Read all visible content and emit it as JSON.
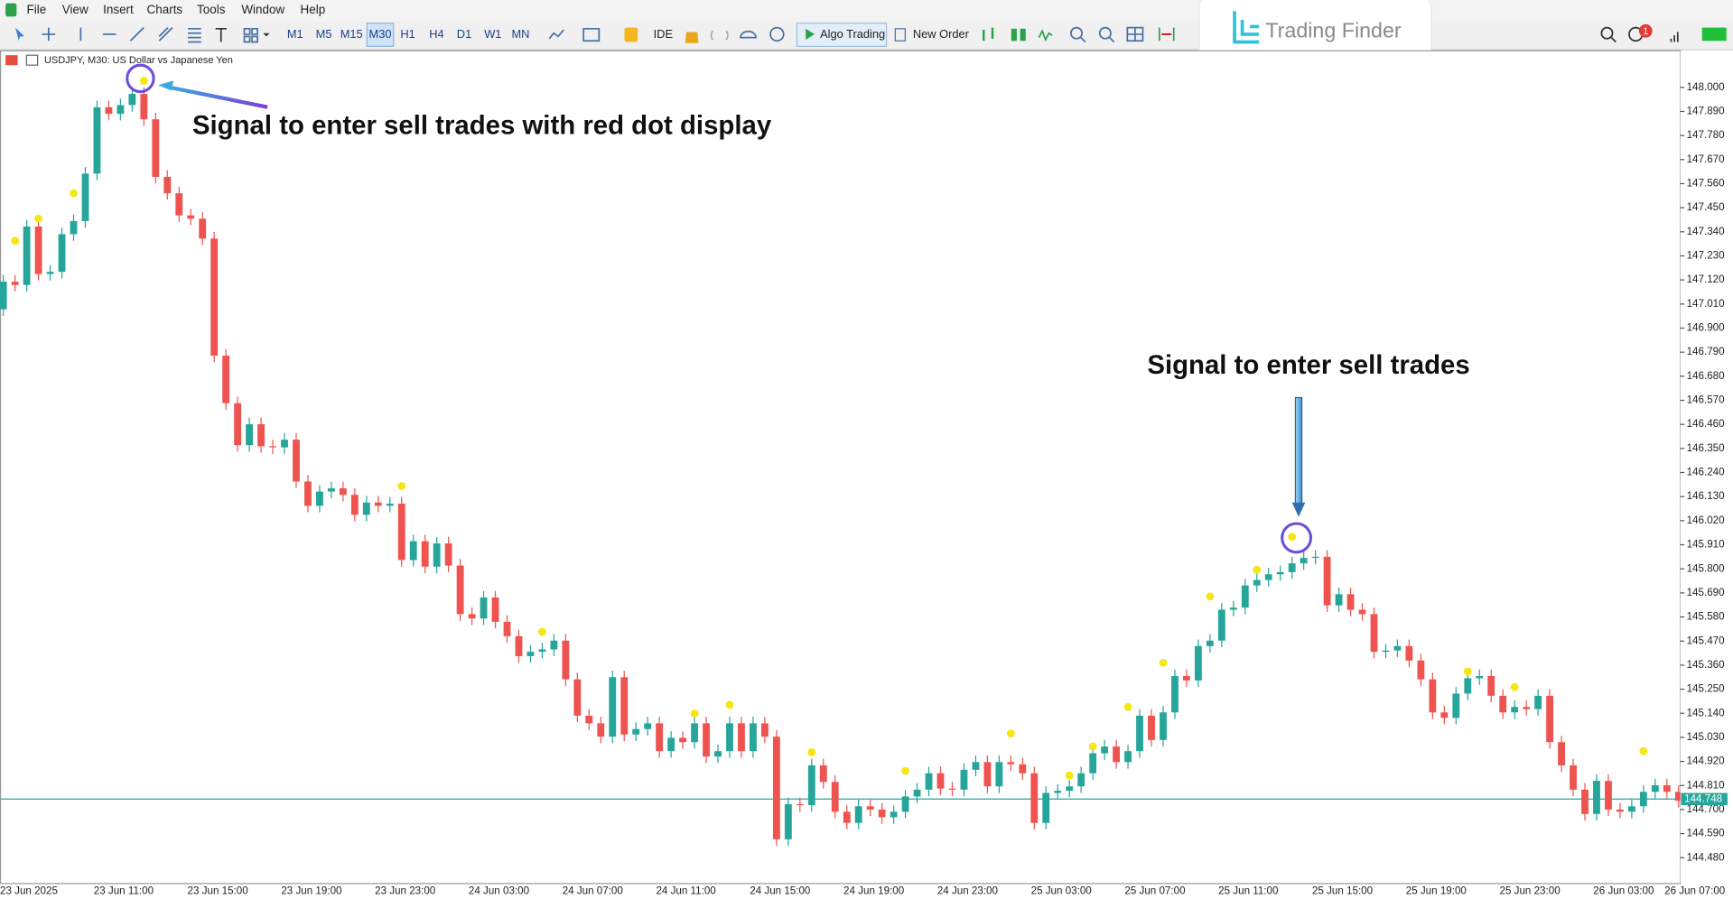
{
  "menu": [
    "File",
    "View",
    "Insert",
    "Charts",
    "Tools",
    "Window",
    "Help"
  ],
  "toolbar": {
    "timeframes": [
      "M1",
      "M5",
      "M15",
      "M30",
      "H1",
      "H4",
      "D1",
      "W1",
      "MN"
    ],
    "active_timeframe": "M30",
    "ide": "IDE",
    "algo_trading": "Algo Trading",
    "new_order": "New Order",
    "notifications": "1"
  },
  "logo": "Trading Finder",
  "chart_data": {
    "type": "candlestick",
    "title": "USDJPY, M30:  US Dollar vs Japanese Yen",
    "categories": [
      "23 Jun 2025",
      null,
      null,
      null,
      null,
      null,
      null,
      null,
      "23 Jun 11:00",
      null,
      null,
      null,
      null,
      null,
      null,
      null,
      "23 Jun 15:00",
      null,
      null,
      null,
      null,
      null,
      null,
      null,
      "23 Jun 19:00",
      null,
      null,
      null,
      null,
      null,
      null,
      null,
      "23 Jun 23:00",
      null,
      null,
      null,
      null,
      null,
      null,
      null,
      "24 Jun 03:00",
      null,
      null,
      null,
      null,
      null,
      null,
      null,
      "24 Jun 07:00",
      null,
      null,
      null,
      null,
      null,
      null,
      null,
      "24 Jun 11:00",
      null,
      null,
      null,
      null,
      null,
      null,
      null,
      "24 Jun 15:00",
      null,
      null,
      null,
      null,
      null,
      null,
      null,
      "24 Jun 19:00",
      null,
      null,
      null,
      null,
      null,
      null,
      null,
      "24 Jun 23:00",
      null,
      null,
      null,
      null,
      null,
      null,
      null,
      "25 Jun 03:00",
      null,
      null,
      null,
      null,
      null,
      null,
      null,
      "25 Jun 07:00",
      null,
      null,
      null,
      null,
      null,
      null,
      null,
      "25 Jun 11:00",
      null,
      null,
      null,
      null,
      null,
      null,
      null,
      "25 Jun 15:00",
      null,
      null,
      null,
      null,
      null,
      null,
      null,
      "25 Jun 19:00",
      null,
      null,
      null,
      null,
      null,
      null,
      null,
      "25 Jun 23:00",
      null,
      null,
      null,
      null,
      null,
      null,
      null,
      "26 Jun 03:00",
      null,
      null,
      null,
      null,
      null,
      null,
      null,
      "26 Jun 07:00"
    ],
    "open": [
      146.986,
      147.112,
      147.097,
      147.364,
      147.147,
      147.157,
      147.329,
      147.389,
      147.606,
      147.909,
      147.879,
      147.919,
      147.97,
      147.854,
      147.591,
      147.516,
      147.415,
      147.4,
      147.309,
      146.774,
      146.557,
      146.365,
      146.461,
      146.36,
      146.355,
      146.39,
      146.199,
      146.088,
      146.153,
      146.168,
      146.138,
      146.047,
      146.103,
      146.088,
      146.098,
      145.84,
      145.926,
      145.81,
      145.916,
      145.815,
      145.593,
      145.573,
      145.669,
      145.558,
      145.492,
      145.401,
      145.421,
      145.432,
      145.472,
      145.295,
      145.129,
      145.094,
      145.033,
      145.305,
      145.043,
      145.068,
      145.094,
      144.967,
      145.028,
      145.008,
      145.094,
      144.942,
      144.967,
      145.094,
      144.967,
      145.094,
      145.033,
      144.564,
      144.725,
      144.72,
      144.902,
      144.826,
      144.69,
      144.639,
      144.715,
      144.7,
      144.665,
      144.69,
      144.76,
      144.791,
      144.866,
      144.796,
      144.791,
      144.882,
      144.917,
      144.806,
      144.917,
      144.907,
      144.866,
      144.639,
      144.776,
      144.786,
      144.806,
      144.866,
      144.957,
      144.988,
      144.917,
      144.967,
      145.129,
      145.018,
      145.144,
      145.31,
      145.29,
      145.447,
      145.472,
      145.613,
      145.623,
      145.724,
      145.749,
      145.775,
      145.785,
      145.825,
      145.85,
      145.855,
      145.633,
      145.684,
      145.613,
      145.593,
      145.421,
      145.427,
      145.447,
      145.381,
      145.295,
      145.144,
      145.119,
      145.23,
      145.3,
      145.31,
      145.22,
      145.144,
      145.169,
      145.159,
      145.22,
      145.008,
      144.902,
      144.791,
      144.68,
      144.831,
      144.7,
      144.69,
      144.715,
      144.781,
      144.811,
      144.781,
      144.74
    ],
    "high": [
      147.142,
      147.142,
      147.394,
      147.394,
      147.187,
      147.359,
      147.419,
      147.636,
      147.939,
      147.939,
      147.949,
      148.0,
      148.0,
      147.884,
      147.621,
      147.546,
      147.445,
      147.43,
      147.339,
      146.804,
      146.587,
      146.491,
      146.491,
      146.39,
      146.42,
      146.42,
      146.229,
      146.183,
      146.198,
      146.198,
      146.168,
      146.133,
      146.133,
      146.128,
      146.128,
      145.956,
      145.956,
      145.946,
      145.946,
      145.845,
      145.623,
      145.699,
      145.699,
      145.588,
      145.522,
      145.451,
      145.462,
      145.502,
      145.502,
      145.325,
      145.159,
      145.124,
      145.335,
      145.335,
      145.098,
      145.124,
      145.124,
      145.058,
      145.058,
      145.124,
      145.124,
      144.997,
      145.124,
      145.124,
      145.124,
      145.124,
      145.063,
      144.755,
      144.755,
      144.932,
      144.932,
      144.856,
      144.72,
      144.745,
      144.745,
      144.73,
      144.72,
      144.79,
      144.821,
      144.896,
      144.896,
      144.826,
      144.912,
      144.947,
      144.947,
      144.947,
      144.947,
      144.937,
      144.896,
      144.806,
      144.816,
      144.836,
      144.896,
      144.987,
      145.018,
      145.018,
      144.997,
      145.159,
      145.159,
      145.174,
      145.34,
      145.34,
      145.477,
      145.502,
      145.643,
      145.653,
      145.754,
      145.779,
      145.805,
      145.815,
      145.855,
      145.88,
      145.885,
      145.885,
      145.714,
      145.714,
      145.643,
      145.623,
      145.457,
      145.477,
      145.477,
      145.411,
      145.325,
      145.174,
      145.26,
      145.33,
      145.34,
      145.34,
      145.25,
      145.199,
      145.199,
      145.25,
      145.25,
      145.038,
      144.932,
      144.821,
      144.861,
      144.861,
      144.73,
      144.745,
      144.811,
      144.841,
      144.841,
      144.811,
      144.77
    ],
    "low": [
      146.956,
      147.067,
      147.067,
      147.117,
      147.117,
      147.127,
      147.299,
      147.359,
      147.576,
      147.849,
      147.849,
      147.889,
      147.824,
      147.561,
      147.486,
      147.385,
      147.37,
      147.279,
      146.744,
      146.527,
      146.335,
      146.335,
      146.33,
      146.325,
      146.325,
      146.169,
      146.058,
      146.058,
      146.123,
      146.108,
      146.017,
      146.017,
      146.058,
      146.058,
      145.81,
      145.81,
      145.78,
      145.78,
      145.785,
      145.563,
      145.543,
      145.543,
      145.528,
      145.462,
      145.371,
      145.371,
      145.391,
      145.402,
      145.265,
      145.099,
      145.064,
      145.003,
      145.003,
      145.013,
      145.013,
      145.038,
      144.937,
      144.937,
      144.978,
      144.978,
      144.912,
      144.912,
      144.937,
      144.937,
      144.937,
      145.003,
      144.534,
      144.534,
      144.69,
      144.69,
      144.796,
      144.66,
      144.609,
      144.609,
      144.67,
      144.635,
      144.635,
      144.66,
      144.73,
      144.761,
      144.766,
      144.761,
      144.761,
      144.852,
      144.776,
      144.776,
      144.877,
      144.836,
      144.609,
      144.609,
      144.746,
      144.756,
      144.776,
      144.836,
      144.927,
      144.887,
      144.887,
      144.937,
      144.988,
      144.988,
      145.114,
      145.26,
      145.26,
      145.417,
      145.442,
      145.583,
      145.593,
      145.694,
      145.719,
      145.745,
      145.755,
      145.795,
      145.82,
      145.603,
      145.603,
      145.583,
      145.563,
      145.391,
      145.391,
      145.397,
      145.351,
      145.265,
      145.114,
      145.089,
      145.089,
      145.2,
      145.27,
      145.19,
      145.114,
      145.114,
      145.129,
      145.129,
      144.978,
      144.872,
      144.761,
      144.65,
      144.65,
      144.67,
      144.66,
      144.66,
      144.685,
      144.751,
      144.751,
      144.71,
      144.609
    ],
    "close": [
      147.112,
      147.097,
      147.364,
      147.147,
      147.157,
      147.329,
      147.389,
      147.606,
      147.909,
      147.879,
      147.919,
      147.97,
      147.854,
      147.591,
      147.516,
      147.415,
      147.4,
      147.309,
      146.774,
      146.557,
      146.365,
      146.461,
      146.36,
      146.355,
      146.39,
      146.199,
      146.088,
      146.153,
      146.168,
      146.138,
      146.047,
      146.103,
      146.088,
      146.098,
      145.84,
      145.926,
      145.81,
      145.916,
      145.815,
      145.593,
      145.573,
      145.669,
      145.558,
      145.492,
      145.401,
      145.421,
      145.432,
      145.472,
      145.295,
      145.129,
      145.094,
      145.033,
      145.305,
      145.043,
      145.068,
      145.094,
      144.967,
      145.028,
      145.008,
      145.094,
      144.942,
      144.967,
      145.094,
      144.967,
      145.094,
      145.033,
      144.564,
      144.725,
      144.72,
      144.902,
      144.826,
      144.69,
      144.639,
      144.715,
      144.7,
      144.665,
      144.69,
      144.76,
      144.791,
      144.866,
      144.796,
      144.791,
      144.882,
      144.917,
      144.806,
      144.917,
      144.907,
      144.866,
      144.639,
      144.776,
      144.786,
      144.806,
      144.866,
      144.957,
      144.988,
      144.917,
      144.967,
      145.129,
      145.018,
      145.144,
      145.31,
      145.29,
      145.447,
      145.472,
      145.613,
      145.623,
      145.724,
      145.749,
      145.775,
      145.785,
      145.825,
      145.85,
      145.855,
      145.633,
      145.684,
      145.613,
      145.593,
      145.421,
      145.427,
      145.447,
      145.381,
      145.295,
      145.144,
      145.119,
      145.23,
      145.3,
      145.31,
      145.22,
      145.144,
      145.169,
      145.159,
      145.22,
      145.008,
      144.902,
      144.791,
      144.68,
      144.831,
      144.7,
      144.69,
      144.715,
      144.781,
      144.811,
      144.781,
      144.74,
      144.639
    ],
    "up_color": "#26a69a",
    "down_color": "#ef5350",
    "ylim": [
      144.362,
      148.167
    ],
    "yticks": [
      {
        "value": 144.48,
        "label": "144.480"
      },
      {
        "value": 144.59,
        "label": "144.590"
      },
      {
        "value": 144.7,
        "label": "144.700"
      },
      {
        "value": 144.81,
        "label": "144.810"
      },
      {
        "value": 144.92,
        "label": "144.920"
      },
      {
        "value": 145.03,
        "label": "145.030"
      },
      {
        "value": 145.14,
        "label": "145.140"
      },
      {
        "value": 145.25,
        "label": "145.250"
      },
      {
        "value": 145.36,
        "label": "145.360"
      },
      {
        "value": 145.47,
        "label": "145.470"
      },
      {
        "value": 145.58,
        "label": "145.580"
      },
      {
        "value": 145.69,
        "label": "145.690"
      },
      {
        "value": 145.8,
        "label": "145.800"
      },
      {
        "value": 145.91,
        "label": "145.910"
      },
      {
        "value": 146.02,
        "label": "146.020"
      },
      {
        "value": 146.13,
        "label": "146.130"
      },
      {
        "value": 146.24,
        "label": "146.240"
      },
      {
        "value": 146.35,
        "label": "146.350"
      },
      {
        "value": 146.46,
        "label": "146.460"
      },
      {
        "value": 146.57,
        "label": "146.570"
      },
      {
        "value": 146.68,
        "label": "146.680"
      },
      {
        "value": 146.79,
        "label": "146.790"
      },
      {
        "value": 146.9,
        "label": "146.900"
      },
      {
        "value": 147.01,
        "label": "147.010"
      },
      {
        "value": 147.12,
        "label": "147.120"
      },
      {
        "value": 147.23,
        "label": "147.230"
      },
      {
        "value": 147.34,
        "label": "147.340"
      },
      {
        "value": 147.45,
        "label": "147.450"
      },
      {
        "value": 147.56,
        "label": "147.560"
      },
      {
        "value": 147.67,
        "label": "147.670"
      },
      {
        "value": 147.78,
        "label": "147.780"
      },
      {
        "value": 147.89,
        "label": "147.890"
      },
      {
        "value": 148.0,
        "label": "148.000"
      }
    ],
    "current_price": {
      "value": 144.748,
      "label": "144.748",
      "color": "#26a69a"
    },
    "signals": {
      "color": "#f5e614",
      "x": [
        1,
        3,
        6,
        12,
        34,
        46,
        59,
        62,
        69,
        77,
        86,
        91,
        93,
        96,
        99,
        103,
        107,
        110,
        125,
        129,
        140
      ],
      "y": [
        147.299,
        147.4,
        147.516,
        148.03,
        146.178,
        145.512,
        145.139,
        145.179,
        144.962,
        144.877,
        145.048,
        144.856,
        144.988,
        145.169,
        145.371,
        145.674,
        145.795,
        145.946,
        145.331,
        145.26,
        144.967
      ]
    },
    "annotations": [
      "Signal to enter sell trades with red dot display",
      "Signal to enter sell trades"
    ]
  }
}
